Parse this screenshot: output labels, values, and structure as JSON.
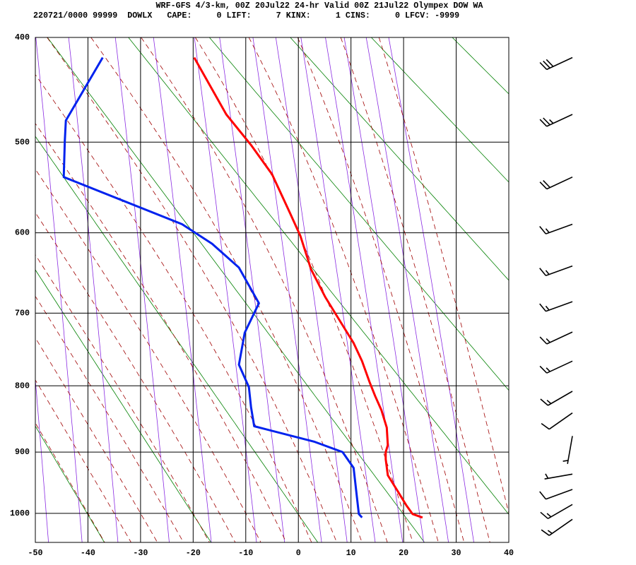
{
  "chart_data": {
    "type": "sounding",
    "title": "WRF-GFS 4/3-km, 00Z 20Jul22 24-hr Valid 00Z 21Jul22 Olympex DOW WA",
    "subtitle": "220721/0000 99999  DOWLX   CAPE:     0 LIFT:     7 KINX:     1 CINS:     0 LFCV: -9999",
    "xlim": [
      -50,
      40
    ],
    "xticks": [
      -50,
      -40,
      -30,
      -20,
      -10,
      0,
      10,
      20,
      30,
      40
    ],
    "ylim": [
      400,
      1050
    ],
    "yticks": [
      400,
      500,
      600,
      700,
      800,
      900,
      1000
    ],
    "y_scale": "exner",
    "grid": true,
    "series": [
      {
        "color": "#ff0000",
        "x": [
          23.6,
          21.7,
          20.5,
          18.9,
          17.0,
          16.6,
          16.6,
          17.0,
          16.8,
          15.8,
          14.6,
          13.5,
          12.1,
          10.5,
          8.4,
          5.1,
          2.4,
          0.4,
          -1.6,
          -5.0,
          -9.0,
          -13.7,
          -19.8
        ],
        "y": [
          1007,
          1001,
          986,
          963,
          937,
          911,
          900,
          889,
          862,
          836,
          815,
          794,
          765,
          740,
          716,
          679,
          644,
          604,
          577,
          534,
          503,
          472,
          418
        ]
      },
      {
        "color": "#0022ee",
        "x": [
          12.1,
          11.5,
          11.1,
          10.5,
          8.4,
          3.1,
          -8.4,
          -9.0,
          -9.4,
          -11.3,
          -10.2,
          -7.5,
          -11.3,
          -16.4,
          -22.1,
          -44.6,
          -44.4,
          -44.2,
          -37.2
        ],
        "y": [
          1007,
          1001,
          971,
          925,
          900,
          884,
          860,
          831,
          802,
          770,
          726,
          687,
          642,
          613,
          590,
          537,
          499,
          478,
          418
        ]
      }
    ],
    "wind_barbs": {
      "color": "#000000",
      "pressure": [
        418,
        472,
        537,
        590,
        640,
        685,
        725,
        765,
        808,
        840,
        875,
        935,
        960,
        985,
        1010
      ],
      "direction": [
        245,
        245,
        245,
        250,
        250,
        250,
        245,
        245,
        240,
        235,
        190,
        260,
        250,
        240,
        235
      ],
      "speed": [
        30,
        25,
        20,
        15,
        15,
        15,
        15,
        15,
        15,
        10,
        5,
        5,
        10,
        15,
        15
      ]
    },
    "dry_adiabats": {
      "color": "#008000",
      "values": [
        213,
        233,
        253,
        273,
        293,
        313,
        333,
        353,
        373,
        393,
        413
      ]
    },
    "moist_adiabats": {
      "color": "#a00000",
      "values": [
        -40,
        -35,
        -30,
        -25,
        -20,
        -15,
        -10,
        -5,
        0,
        5,
        10,
        15,
        20,
        25,
        30,
        35,
        40
      ]
    },
    "mixing_ratios": {
      "color": "#8a2be2",
      "values": [
        0.02,
        0.05,
        0.1,
        0.2,
        0.5,
        1,
        2,
        3,
        5,
        7,
        10,
        14,
        18,
        24,
        32
      ]
    }
  }
}
